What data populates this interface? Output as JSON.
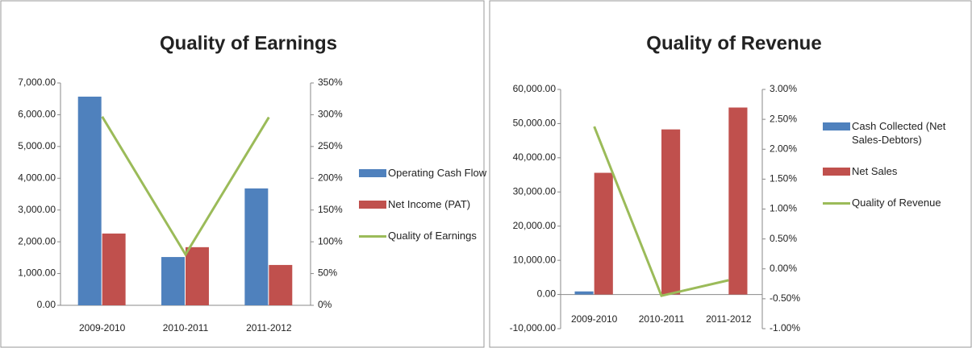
{
  "chart_data": [
    {
      "type": "bar",
      "title": "Quality of Earnings",
      "categories": [
        "2009-2010",
        "2010-2011",
        "2011-2012"
      ],
      "series": [
        {
          "name": "Operating Cash Flow",
          "color": "#4f81bd",
          "values": [
            6570,
            1520,
            3680
          ]
        },
        {
          "name": "Net Income (PAT)",
          "color": "#c0504d",
          "values": [
            2260,
            1830,
            1270
          ]
        },
        {
          "name": "Quality of Earnings",
          "color": "#9bbb59",
          "type": "line",
          "axis": "y2",
          "values": [
            297,
            80,
            296
          ]
        }
      ],
      "ylim": [
        0,
        7000
      ],
      "yticks": [
        {
          "value": 0,
          "label": "0.00"
        },
        {
          "value": 1000,
          "label": "1,000.00"
        },
        {
          "value": 2000,
          "label": "2,000.00"
        },
        {
          "value": 3000,
          "label": "3,000.00"
        },
        {
          "value": 4000,
          "label": "4,000.00"
        },
        {
          "value": 5000,
          "label": "5,000.00"
        },
        {
          "value": 6000,
          "label": "6,000.00"
        },
        {
          "value": 7000,
          "label": "7,000.00"
        }
      ],
      "y2lim": [
        0,
        350
      ],
      "y2ticks": [
        {
          "value": 0,
          "label": "0%"
        },
        {
          "value": 50,
          "label": "50%"
        },
        {
          "value": 100,
          "label": "100%"
        },
        {
          "value": 150,
          "label": "150%"
        },
        {
          "value": 200,
          "label": "200%"
        },
        {
          "value": 250,
          "label": "250%"
        },
        {
          "value": 300,
          "label": "300%"
        },
        {
          "value": 350,
          "label": "350%"
        }
      ],
      "legend": "right"
    },
    {
      "type": "bar",
      "title": "Quality of Revenue",
      "categories": [
        "2009-2010",
        "2010-2011",
        "2011-2012"
      ],
      "series": [
        {
          "name": "Cash Collected (Net Sales-Debtors)",
          "color": "#4f81bd",
          "values": [
            900,
            0,
            0
          ]
        },
        {
          "name": "Net Sales",
          "color": "#c0504d",
          "values": [
            35600,
            48300,
            54700
          ]
        },
        {
          "name": "Quality of Revenue",
          "color": "#9bbb59",
          "type": "line",
          "axis": "y2",
          "values": [
            2.38,
            -0.45,
            -0.19
          ]
        }
      ],
      "ylim": [
        -10000,
        60000
      ],
      "yticks": [
        {
          "value": -10000,
          "label": "-10,000.00"
        },
        {
          "value": 0,
          "label": "0.00"
        },
        {
          "value": 10000,
          "label": "10,000.00"
        },
        {
          "value": 20000,
          "label": "20,000.00"
        },
        {
          "value": 30000,
          "label": "30,000.00"
        },
        {
          "value": 40000,
          "label": "40,000.00"
        },
        {
          "value": 50000,
          "label": "50,000.00"
        },
        {
          "value": 60000,
          "label": "60,000.00"
        }
      ],
      "y2lim": [
        -1,
        3
      ],
      "y2ticks": [
        {
          "value": -1,
          "label": "-1.00%"
        },
        {
          "value": -0.5,
          "label": "-0.50%"
        },
        {
          "value": 0,
          "label": "0.00%"
        },
        {
          "value": 0.5,
          "label": "0.50%"
        },
        {
          "value": 1,
          "label": "1.00%"
        },
        {
          "value": 1.5,
          "label": "1.50%"
        },
        {
          "value": 2,
          "label": "2.00%"
        },
        {
          "value": 2.5,
          "label": "2.50%"
        },
        {
          "value": 3,
          "label": "3.00%"
        }
      ],
      "legend": "right"
    }
  ]
}
